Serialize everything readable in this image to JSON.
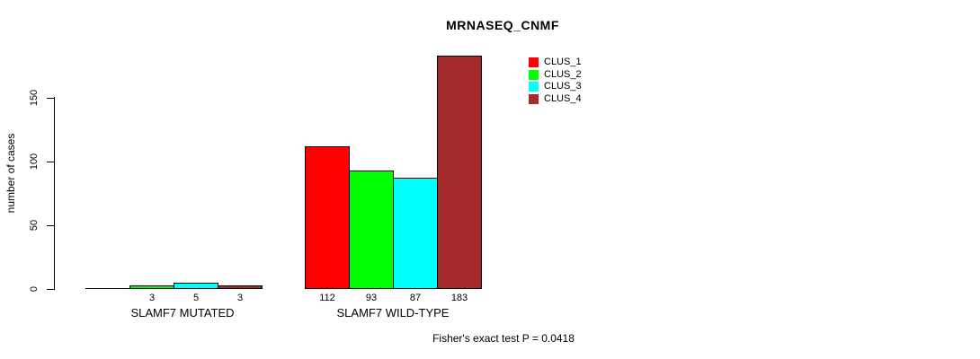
{
  "chart_data": {
    "type": "bar",
    "title": "MRNASEQ_CNMF",
    "ylabel": "number of cases",
    "xlabel": "",
    "footer": "Fisher's exact test P = 0.0418",
    "categories": [
      "SLAMF7 MUTATED",
      "SLAMF7 WILD-TYPE"
    ],
    "series": [
      {
        "name": "CLUS_1",
        "color": "#FF0000",
        "values": [
          0,
          112
        ]
      },
      {
        "name": "CLUS_2",
        "color": "#00FF00",
        "values": [
          3,
          93
        ]
      },
      {
        "name": "CLUS_3",
        "color": "#00FFFF",
        "values": [
          5,
          87
        ]
      },
      {
        "name": "CLUS_4",
        "color": "#A52A2A",
        "values": [
          3,
          183
        ]
      }
    ],
    "value_labels": [
      [
        "",
        "3",
        "5",
        "3"
      ],
      [
        "112",
        "93",
        "87",
        "183"
      ]
    ],
    "yticks": [
      "0",
      "50",
      "100",
      "150"
    ],
    "ylim": [
      0,
      150
    ],
    "grid": "off",
    "legend_position": "top-right",
    "bar_border_color": "#000000",
    "background_color": "#FFFFFF",
    "text_color": "#000000"
  }
}
